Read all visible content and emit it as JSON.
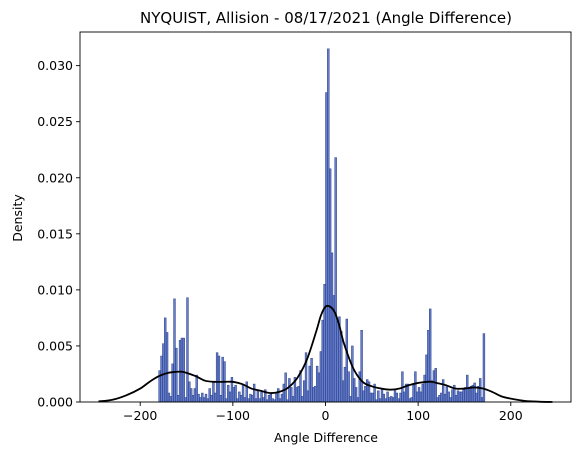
{
  "chart_data": {
    "type": "bar",
    "title": "NYQUIST, Allision - 08/17/2021 (Angle Difference)",
    "xlabel": "Angle Difference",
    "ylabel": "Density",
    "xlim": [
      -265,
      265
    ],
    "ylim": [
      0,
      0.033
    ],
    "xticks": [
      -200,
      -100,
      0,
      100,
      200
    ],
    "xtick_labels": [
      "−200",
      "−100",
      "0",
      "100",
      "200"
    ],
    "yticks": [
      0.0,
      0.005,
      0.01,
      0.015,
      0.02,
      0.025,
      0.03
    ],
    "ytick_labels": [
      "0.000",
      "0.005",
      "0.010",
      "0.015",
      "0.020",
      "0.025",
      "0.030"
    ],
    "grid": false,
    "legend": "none",
    "bin_width": 2,
    "histogram": {
      "name": "histogram",
      "bin_left": [
        -180,
        -178,
        -176,
        -174,
        -172,
        -170,
        -168,
        -166,
        -164,
        -162,
        -160,
        -158,
        -156,
        -154,
        -152,
        -150,
        -148,
        -146,
        -144,
        -142,
        -140,
        -138,
        -136,
        -134,
        -132,
        -130,
        -128,
        -126,
        -124,
        -122,
        -120,
        -118,
        -116,
        -114,
        -112,
        -110,
        -108,
        -106,
        -104,
        -102,
        -100,
        -98,
        -96,
        -94,
        -92,
        -90,
        -88,
        -86,
        -84,
        -82,
        -80,
        -78,
        -76,
        -74,
        -72,
        -70,
        -68,
        -66,
        -64,
        -62,
        -60,
        -58,
        -56,
        -54,
        -52,
        -50,
        -48,
        -46,
        -44,
        -42,
        -40,
        -38,
        -36,
        -34,
        -32,
        -30,
        -28,
        -26,
        -24,
        -22,
        -20,
        -18,
        -16,
        -14,
        -12,
        -10,
        -8,
        -6,
        -4,
        -2,
        0,
        2,
        4,
        6,
        8,
        10,
        12,
        14,
        16,
        18,
        20,
        22,
        24,
        26,
        28,
        30,
        32,
        34,
        36,
        38,
        40,
        42,
        44,
        46,
        48,
        50,
        52,
        54,
        56,
        58,
        60,
        62,
        64,
        66,
        68,
        70,
        72,
        74,
        76,
        78,
        80,
        82,
        84,
        86,
        88,
        90,
        92,
        94,
        96,
        98,
        100,
        102,
        104,
        106,
        108,
        110,
        112,
        114,
        116,
        118,
        120,
        122,
        124,
        126,
        128,
        130,
        132,
        134,
        136,
        138,
        140,
        142,
        144,
        146,
        148,
        150,
        152,
        154,
        156,
        158,
        160,
        162,
        164,
        166,
        168,
        170,
        172,
        174,
        176,
        178
      ],
      "density": [
        0.0028,
        0.0041,
        0.0052,
        0.0075,
        0.0062,
        0.0008,
        0.0005,
        0.0034,
        0.0092,
        0.0048,
        0.0006,
        0.0055,
        0.0057,
        0.0057,
        0.0004,
        0.0093,
        0.0018,
        0.0012,
        0.0006,
        0.0012,
        0.0024,
        0.0007,
        0.0004,
        0.0008,
        0.0004,
        0.0007,
        0.0003,
        0.0012,
        0.0006,
        0.0018,
        0.0008,
        0.0044,
        0.0041,
        0.0006,
        0.004,
        0.0036,
        0.0003,
        0.0015,
        0.0009,
        0.0022,
        0.0013,
        0.0015,
        0.0003,
        0.0009,
        0.0006,
        0.0015,
        0.0004,
        0.0018,
        0.0003,
        0.0007,
        0.0006,
        0.0016,
        0.0003,
        0.0011,
        0.0003,
        0.0009,
        0.0004,
        0.0011,
        0.0002,
        0.0006,
        0.0007,
        0.0003,
        0.0002,
        0.0008,
        0.0012,
        0.0003,
        0.0007,
        0.0016,
        0.0026,
        0.0002,
        0.0021,
        0.0013,
        0.0005,
        0.0022,
        0.0013,
        0.0014,
        0.0028,
        0.0005,
        0.0019,
        0.0044,
        0.001,
        0.0032,
        0.0039,
        0.0013,
        0.0014,
        0.0032,
        0.0026,
        0.0045,
        0.0073,
        0.0105,
        0.0276,
        0.0315,
        0.0208,
        0.0133,
        0.0095,
        0.0218,
        0.0072,
        0.0076,
        0.0063,
        0.0019,
        0.0031,
        0.0074,
        0.0027,
        0.0005,
        0.005,
        0.0021,
        0.0013,
        0.0004,
        0.0027,
        0.0064,
        0.001,
        0.0014,
        0.002,
        0.0018,
        0.0008,
        0.0008,
        0.0016,
        0.0002,
        0.001,
        0.0003,
        0.0012,
        0.0007,
        0.0003,
        0.0009,
        0.0004,
        0.0005,
        0.0004,
        0.0011,
        0.0008,
        0.0003,
        0.0008,
        0.0027,
        0.0009,
        0.0016,
        0.0016,
        0.0003,
        0.0004,
        0.0015,
        0.0027,
        0.0009,
        0.0013,
        0.0009,
        0.0016,
        0.0024,
        0.0042,
        0.0064,
        0.0083,
        0.0019,
        0.0028,
        0.003,
        0.0004,
        0.0006,
        0.0008,
        0.002,
        0.0007,
        0.0014,
        0.0009,
        0.0004,
        0.0011,
        0.0015,
        0.0006,
        0.001,
        0.0009,
        0.0009,
        0.0011,
        0.0013,
        0.0024,
        0.0012,
        0.0014,
        0.0015,
        0.0017,
        0.0008,
        0.0014,
        0.0021,
        0.0004,
        0.0061
      ],
      "bar_color": "#4a66c4",
      "edge_color": "#2b3f82"
    },
    "kde": {
      "name": "kde",
      "x": [
        -245,
        -230,
        -215,
        -200,
        -190,
        -180,
        -170,
        -160,
        -155,
        -150,
        -140,
        -130,
        -120,
        -110,
        -100,
        -90,
        -80,
        -70,
        -60,
        -50,
        -40,
        -30,
        -20,
        -10,
        -5,
        0,
        5,
        10,
        15,
        20,
        30,
        40,
        50,
        60,
        70,
        80,
        90,
        100,
        110,
        115,
        120,
        130,
        140,
        150,
        160,
        170,
        180,
        190,
        200,
        215,
        230,
        245
      ],
      "y": [
        5e-05,
        0.0002,
        0.0006,
        0.0012,
        0.0018,
        0.0023,
        0.0026,
        0.0027,
        0.0027,
        0.0026,
        0.0023,
        0.0019,
        0.0018,
        0.0018,
        0.0018,
        0.0016,
        0.0012,
        0.001,
        0.0008,
        0.0009,
        0.0013,
        0.0022,
        0.0038,
        0.0063,
        0.0077,
        0.0085,
        0.0085,
        0.008,
        0.0068,
        0.0052,
        0.003,
        0.0018,
        0.0014,
        0.0012,
        0.0011,
        0.0012,
        0.0015,
        0.0017,
        0.0018,
        0.0018,
        0.0017,
        0.0015,
        0.0012,
        0.0012,
        0.0013,
        0.0012,
        0.0009,
        0.0005,
        0.0003,
        0.0001,
        3e-05,
        0.0
      ],
      "color": "#000000"
    }
  }
}
